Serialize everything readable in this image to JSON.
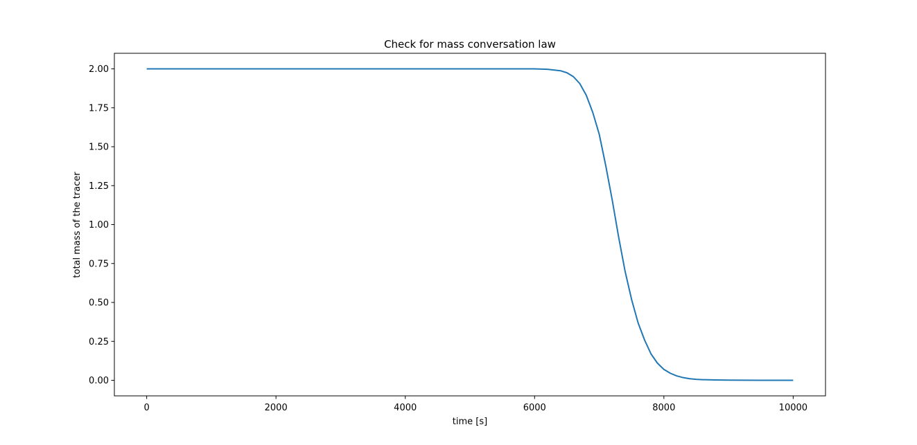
{
  "chart_data": {
    "type": "line",
    "title": "Check for mass conversation law",
    "xlabel": "time [s]",
    "ylabel": "total mass of the tracer",
    "xlim": [
      -500,
      10500
    ],
    "ylim": [
      -0.1,
      2.1
    ],
    "xticks": [
      0,
      2000,
      4000,
      6000,
      8000,
      10000
    ],
    "xtick_labels": [
      "0",
      "2000",
      "4000",
      "6000",
      "8000",
      "10000"
    ],
    "yticks": [
      0.0,
      0.25,
      0.5,
      0.75,
      1.0,
      1.25,
      1.5,
      1.75,
      2.0
    ],
    "ytick_labels": [
      "0.00",
      "0.25",
      "0.50",
      "0.75",
      "1.00",
      "1.25",
      "1.50",
      "1.75",
      "2.00"
    ],
    "grid": false,
    "series": [
      {
        "color": "#1f77b4",
        "x": [
          0,
          1000,
          2000,
          3000,
          4000,
          5000,
          6000,
          6200,
          6400,
          6500,
          6600,
          6700,
          6800,
          6900,
          7000,
          7100,
          7200,
          7300,
          7400,
          7500,
          7600,
          7700,
          7800,
          7900,
          8000,
          8100,
          8200,
          8300,
          8400,
          8500,
          8600,
          8800,
          9000,
          9500,
          10000
        ],
        "y": [
          2.0,
          2.0,
          2.0,
          2.0,
          2.0,
          2.0,
          2.0,
          1.997,
          1.988,
          1.975,
          1.95,
          1.905,
          1.83,
          1.72,
          1.58,
          1.38,
          1.16,
          0.92,
          0.7,
          0.52,
          0.37,
          0.26,
          0.17,
          0.11,
          0.07,
          0.045,
          0.028,
          0.017,
          0.01,
          0.006,
          0.004,
          0.002,
          0.001,
          0.0,
          0.0
        ]
      }
    ]
  }
}
